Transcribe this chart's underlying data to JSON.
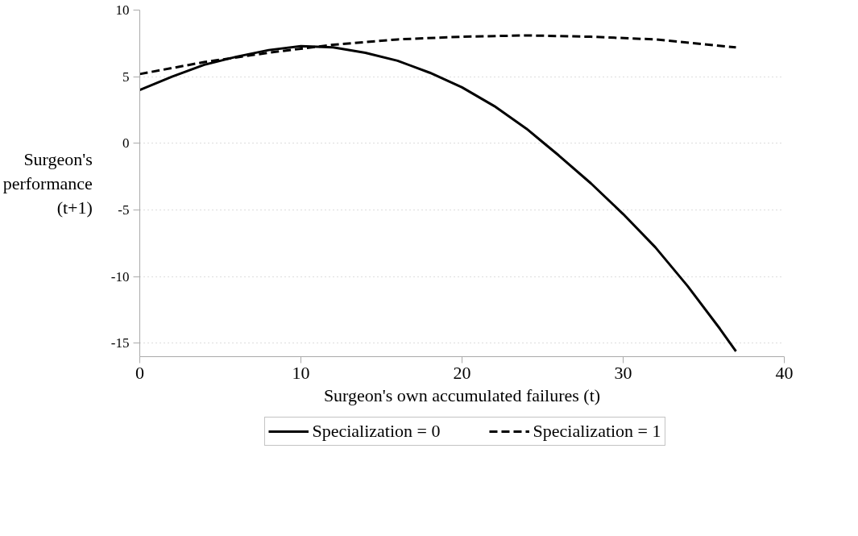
{
  "chart_data": {
    "type": "line",
    "xlabel": "Surgeon's own accumulated failures (t)",
    "ylabel": "Surgeon's performance (t+1)",
    "xlim": [
      0,
      40
    ],
    "xticks": [
      0,
      10,
      20,
      30,
      40
    ],
    "ylim": [
      -16,
      10
    ],
    "yticks": [
      -15,
      -10,
      -5,
      0,
      5,
      10
    ],
    "grid": "y",
    "legend": "bottom",
    "marker": "none",
    "series": [
      {
        "name": "Specialization = 0",
        "color": "#000000",
        "line_style": "solid",
        "x": [
          0,
          2,
          4,
          6,
          8,
          10,
          12,
          14,
          16,
          18,
          20,
          22,
          24,
          25,
          26,
          28,
          30,
          32,
          34,
          36,
          37
        ],
        "values": [
          4.0,
          5.0,
          5.9,
          6.5,
          7.0,
          7.3,
          7.2,
          6.8,
          6.2,
          5.3,
          4.2,
          2.8,
          1.1,
          0.1,
          -0.9,
          -3.0,
          -5.3,
          -7.8,
          -10.7,
          -13.9,
          -15.6
        ]
      },
      {
        "name": "Specialization = 1",
        "color": "#000000",
        "line_style": "dashed",
        "x": [
          0,
          4,
          8,
          12,
          16,
          20,
          24,
          28,
          32,
          37
        ],
        "values": [
          5.2,
          6.1,
          6.8,
          7.4,
          7.8,
          8.0,
          8.1,
          8.0,
          7.8,
          7.2
        ]
      }
    ]
  }
}
